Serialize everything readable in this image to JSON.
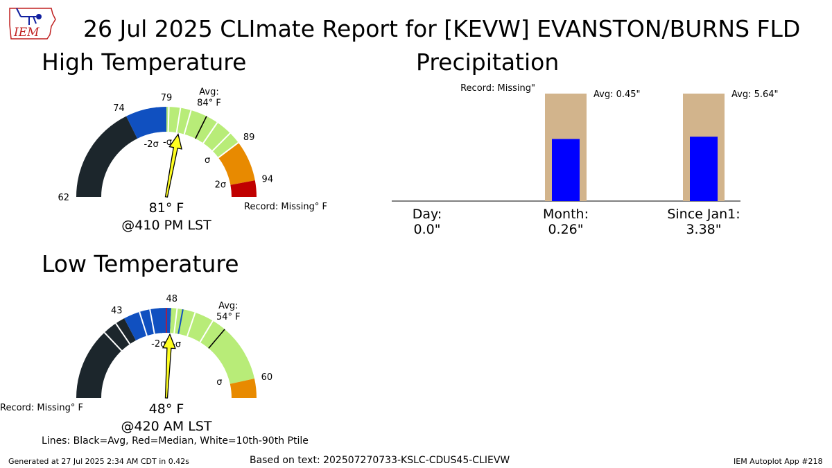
{
  "title": "26 Jul 2025 CLImate Report for [KEVW] EVANSTON/BURNS FLD",
  "logo": {
    "text": "IEM",
    "icon": "iowa-state-outline-logo"
  },
  "footer": {
    "generated": "Generated at 27 Jul 2025 2:34 AM CDT in 0.42s",
    "based_on": "Based on text: 202507270733-KSLC-CDUS45-CLIEVW",
    "app": "IEM Autoplot App #218"
  },
  "legend_note": "Lines: Black=Avg, Red=Median, White=10th-90th Ptile",
  "chart_data": [
    {
      "type": "gauge",
      "title": "High Temperature",
      "unit": "°F",
      "min": 62,
      "max": 96,
      "avg": 84,
      "median": 84,
      "observed": 81,
      "observed_label": "81° F",
      "observed_time": "@410 PM LST",
      "avg_label": "Avg:",
      "avg_value_label": "84° F",
      "record_label": "Record: Missing° F",
      "colors": {
        "dark": "#1c262c",
        "blue": "#1050c0",
        "light_green": "#b8ec78",
        "green": "#a6e46a",
        "orange": "#e88a00",
        "red": "#c00000",
        "arrow": "#ffff20"
      },
      "bands": [
        {
          "from": 62,
          "to": 74,
          "color": "#1c262c"
        },
        {
          "from": 74,
          "to": 79,
          "color": "#1050c0"
        },
        {
          "from": 79,
          "to": 89,
          "color": "#b8ec78"
        },
        {
          "from": 89,
          "to": 94,
          "color": "#e88a00"
        },
        {
          "from": 94,
          "to": 96,
          "color": "#c00000"
        }
      ],
      "tick_labels": [
        {
          "value": 62,
          "label": "62"
        },
        {
          "value": 74,
          "label": "74"
        },
        {
          "value": 79,
          "label": "79"
        },
        {
          "value": 89,
          "label": "89"
        },
        {
          "value": 94,
          "label": "94"
        }
      ],
      "sigma_labels": [
        {
          "value": 76,
          "label": "-2σ"
        },
        {
          "value": 79.2,
          "label": "-σ"
        },
        {
          "value": 88,
          "label": "σ"
        },
        {
          "value": 93.5,
          "label": "2σ"
        }
      ],
      "white_lines": [
        79.3,
        80.7,
        82.0,
        85.5,
        87.5,
        89.0
      ],
      "blue_lines": [
        76.6,
        77.8
      ]
    },
    {
      "type": "gauge",
      "title": "Low Temperature",
      "unit": "°F",
      "min": 33,
      "max": 62,
      "avg": 54,
      "median": 47.5,
      "observed": 48,
      "observed_label": "48° F",
      "observed_time": "@420 AM LST",
      "avg_label": "Avg:",
      "avg_value_label": "54° F",
      "record_label": "Record: Missing° F",
      "colors": {
        "dark": "#1c262c",
        "blue": "#1050c0",
        "light_green": "#b8ec78",
        "orange": "#e88a00",
        "arrow": "#ffff20"
      },
      "bands": [
        {
          "from": 33,
          "to": 43,
          "color": "#1c262c"
        },
        {
          "from": 43,
          "to": 48,
          "color": "#1050c0"
        },
        {
          "from": 48,
          "to": 60,
          "color": "#b8ec78"
        },
        {
          "from": 60,
          "to": 62,
          "color": "#e88a00"
        }
      ],
      "tick_labels": [
        {
          "value": 43,
          "label": "43"
        },
        {
          "value": 48,
          "label": "48"
        },
        {
          "value": 60,
          "label": "60"
        }
      ],
      "sigma_labels": [
        {
          "value": 46.2,
          "label": "-2σ"
        },
        {
          "value": 49.2,
          "label": "-σ"
        },
        {
          "value": 59.2,
          "label": "σ"
        }
      ],
      "white_lines": [
        40.5,
        42.0,
        44.7,
        45.8,
        48.6,
        50.5,
        52.5
      ],
      "blue_lines": [
        44.4,
        46.8,
        49.2
      ]
    },
    {
      "type": "bar",
      "title": "Precipitation",
      "categories": [
        "Day:",
        "Month:",
        "Since Jan1:"
      ],
      "values": [
        0.0,
        0.26,
        3.38
      ],
      "value_labels": [
        "0.0\"",
        "0.26\"",
        "3.38\""
      ],
      "averages": [
        null,
        0.45,
        5.64
      ],
      "avg_labels": [
        "",
        "Avg: 0.45\"",
        "Avg: 5.64\""
      ],
      "record_label": "Record: Missing\"",
      "colors": {
        "observed": "#0000ff",
        "average": "#d2b48c"
      }
    }
  ]
}
